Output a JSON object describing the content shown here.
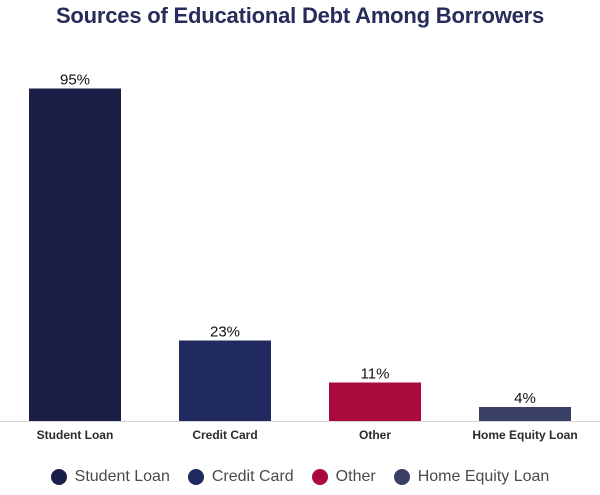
{
  "chart_data": {
    "type": "bar",
    "title": "Sources of Educational Debt Among Borrowers",
    "categories": [
      "Student Loan",
      "Credit Card",
      "Other",
      "Home Equity Loan"
    ],
    "values": [
      95,
      23,
      11,
      4
    ],
    "value_labels": [
      "95%",
      "23%",
      "11%",
      "4%"
    ],
    "colors": [
      "#1b1f47",
      "#212a5e",
      "#ab0a3d",
      "#3a3f65"
    ],
    "ylim": [
      0,
      100
    ],
    "grid": false,
    "legend_position": "bottom",
    "legend": [
      "Student Loan",
      "Credit Card",
      "Other",
      "Home Equity Loan"
    ]
  }
}
